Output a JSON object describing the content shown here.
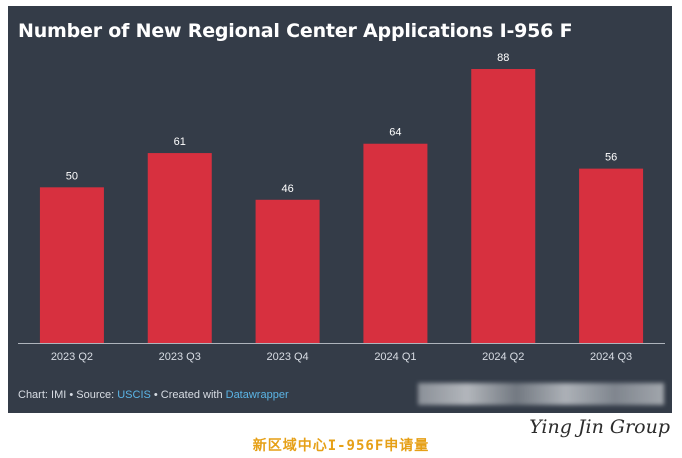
{
  "chart_title": "Number of New Regional Center Applications I-956 F",
  "chart_data": {
    "type": "bar",
    "title": "Number of New Regional Center Applications I-956 F",
    "categories": [
      "2023 Q2",
      "2023 Q3",
      "2023 Q4",
      "2024 Q1",
      "2024 Q2",
      "2024 Q3"
    ],
    "values": [
      50,
      61,
      46,
      64,
      88,
      56
    ],
    "xlabel": "",
    "ylabel": "",
    "ylim": [
      0,
      88
    ],
    "grid": false,
    "legend": "none",
    "bar_color": "#d7303f",
    "background_color": "#343c48",
    "text_color": "#ffffff"
  },
  "source": {
    "prefix": "Chart: IMI • Source: ",
    "source_link": "USCIS",
    "middle": " • Created with ",
    "tool_link": "Datawrapper"
  },
  "caption": "新区域中心I-956F申请量",
  "signature": "Ying Jin Group"
}
